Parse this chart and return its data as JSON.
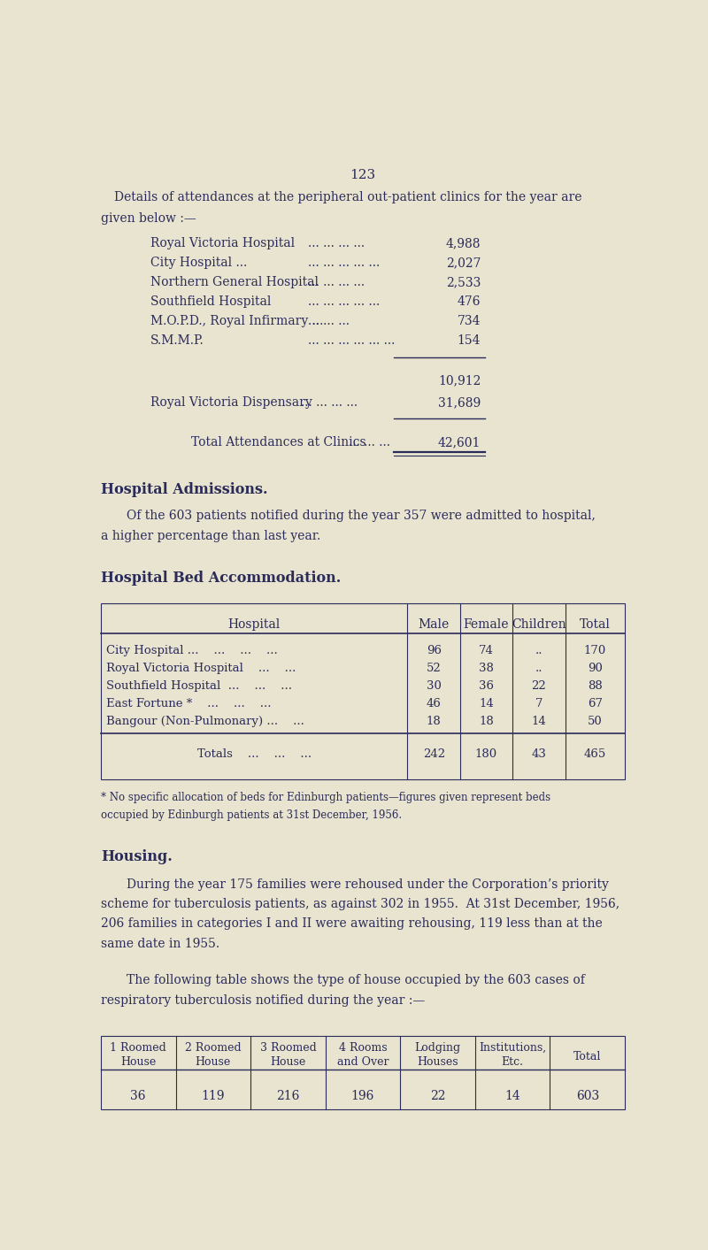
{
  "page_number": "123",
  "bg_color": "#e8e4d0",
  "text_color": "#2b2b5a",
  "intro_line1": "Details of attendances at the peripheral out-patient clinics for the year are",
  "intro_line2": "given below :—",
  "clinic_items": [
    [
      "Royal Victoria Hospital",
      "... ... ... ...",
      "4,988"
    ],
    [
      "City Hospital ...",
      "... ... ... ... ...",
      "2,027"
    ],
    [
      "Northern General Hospital",
      "... ... ... ...",
      "2,533"
    ],
    [
      "Southfield Hospital",
      "... ... ... ... ...",
      "476"
    ],
    [
      "M.O.P.D., Royal Infirmary ...",
      "... ... ...",
      "734"
    ],
    [
      "S.M.M.P.",
      "... ... ... ... ... ...",
      "154"
    ]
  ],
  "subtotal": "10,912",
  "dispensary_label": "Royal Victoria Dispensary",
  "dispensary_dots": "... ... ... ...",
  "dispensary_value": "31,689",
  "total_label": "Total Attendances at Clinics",
  "total_dots": "... ... ...",
  "total_value": "42,601",
  "admissions_heading": "Hospital Admissions.",
  "admissions_line1": "Of the 603 patients notified during the year 357 were admitted to hospital,",
  "admissions_line2": "a higher percentage than last year.",
  "bed_heading": "Hospital Bed Accommodation.",
  "bed_table_headers": [
    "Hospital",
    "Male",
    "Female",
    "Children",
    "Total"
  ],
  "bed_col_bounds": [
    0.18,
    4.65,
    5.42,
    6.18,
    6.95,
    7.82
  ],
  "bed_table_rows": [
    [
      "City Hospital ...    ...    ...    ...",
      "96",
      "74",
      "..",
      "170"
    ],
    [
      "Royal Victoria Hospital    ...    ...",
      "52",
      "38",
      "..",
      "90"
    ],
    [
      "Southfield Hospital  ...    ...    ...",
      "30",
      "36",
      "22",
      "88"
    ],
    [
      "East Fortune *    ...    ...    ...",
      "46",
      "14",
      "7",
      "67"
    ],
    [
      "Bangour (Non-Pulmonary) ...    ...",
      "18",
      "18",
      "14",
      "50"
    ]
  ],
  "bed_table_totals": [
    "Totals    ...    ...    ...",
    "242",
    "180",
    "43",
    "465"
  ],
  "footnote_line1": "* No specific allocation of beds for Edinburgh patients—figures given represent beds",
  "footnote_line2": "occupied by Edinburgh patients at 31st December, 1956.",
  "housing_heading": "Housing.",
  "housing_text1_lines": [
    "During the year 175 families were rehoused under the Corporation’s priority",
    "scheme for tuberculosis patients, as against 302 in 1955.  At 31st December, 1956,",
    "206 families in categories I and II were awaiting rehousing, 119 less than at the",
    "same date in 1955."
  ],
  "housing_text2_lines": [
    "The following table shows the type of house occupied by the 603 cases of",
    "respiratory tuberculosis notified during the year :—"
  ],
  "house_table_headers": [
    "1 Roomed\nHouse",
    "2 Roomed\nHouse",
    "3 Roomed\nHouse",
    "4 Rooms\nand Over",
    "Lodging\nHouses",
    "Institutions,\nEtc.",
    "Total"
  ],
  "house_table_values": [
    "36",
    "119",
    "216",
    "196",
    "22",
    "14",
    "603"
  ]
}
